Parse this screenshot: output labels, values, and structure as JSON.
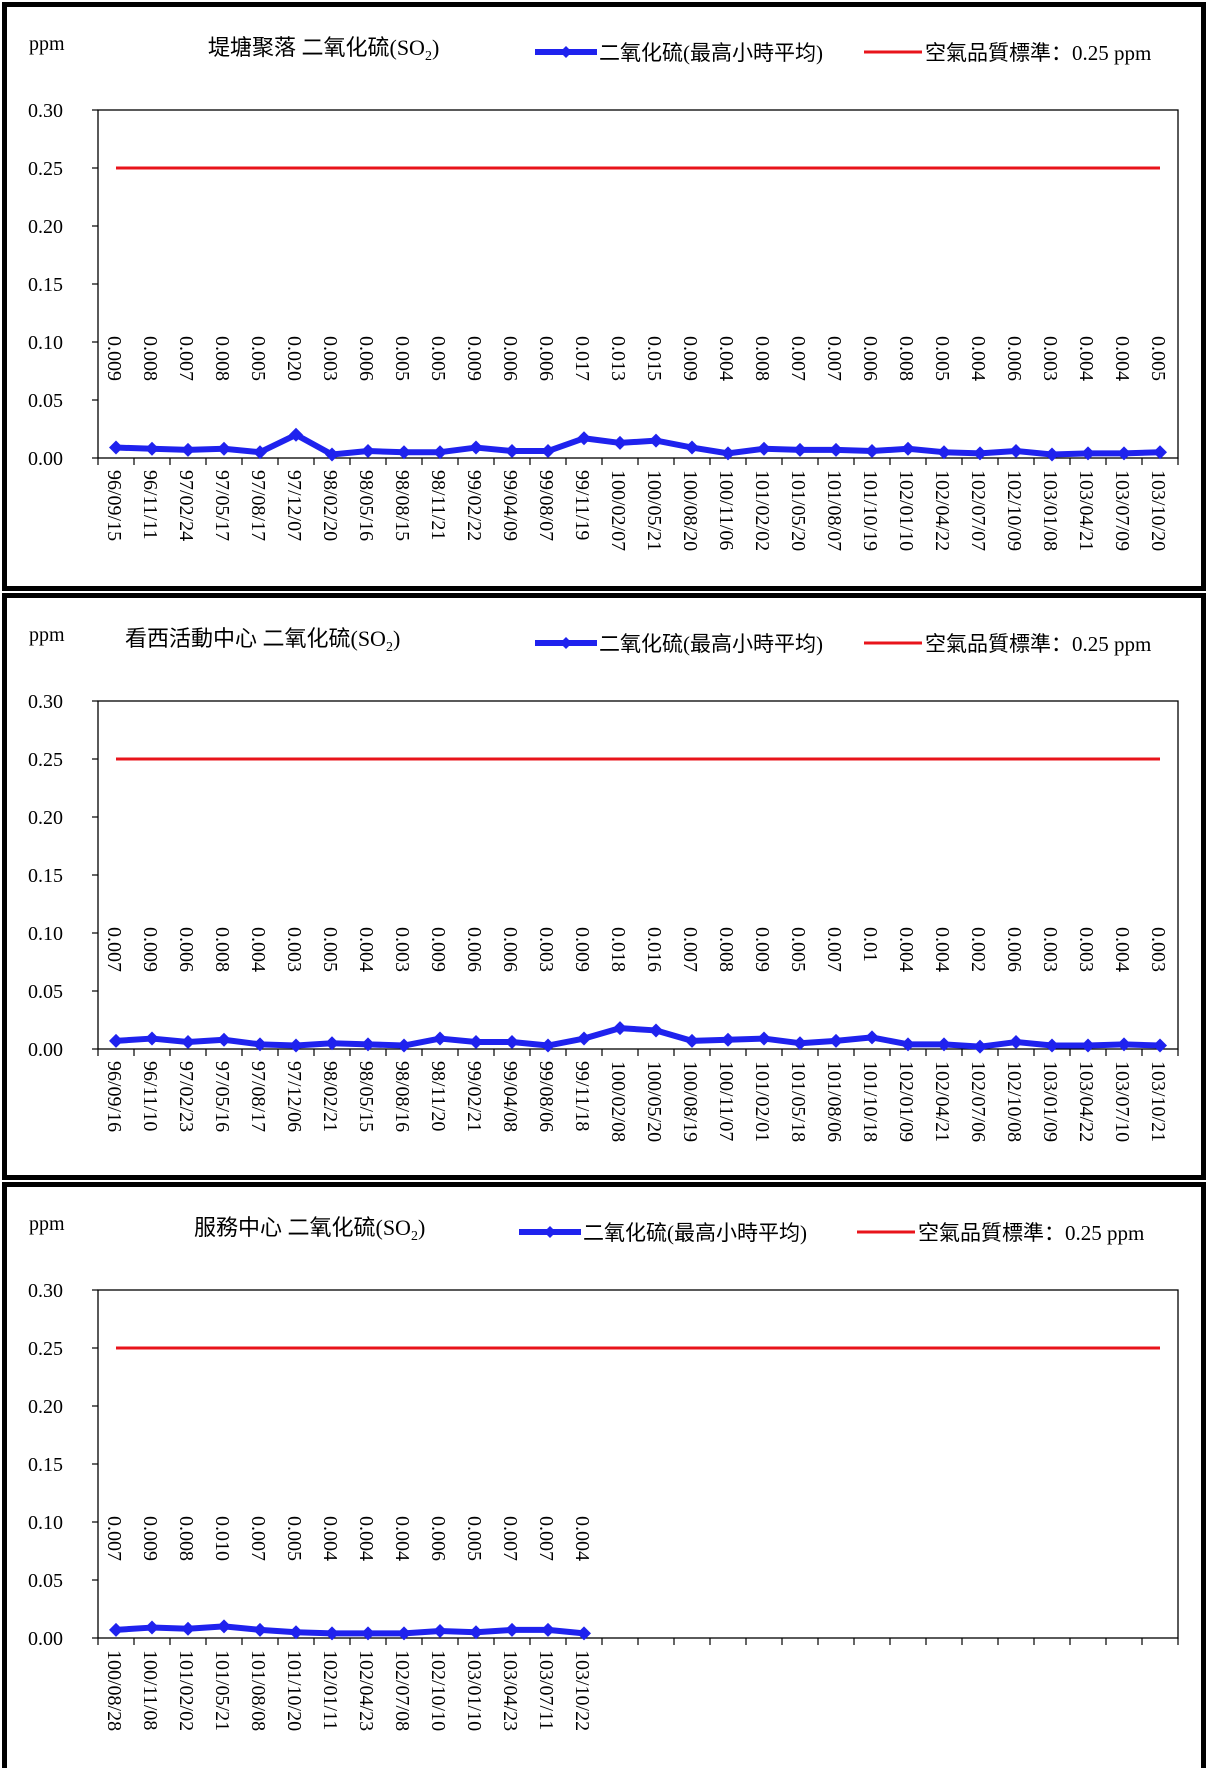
{
  "colors": {
    "series": "#1f22ee",
    "standard": "#e8141b",
    "axis": "#000000"
  },
  "charts": [
    {
      "unit": "ppm",
      "title_main": "堤塘聚落 二氧化硫(SO",
      "title_sub": "2",
      "title_end": ")",
      "legend_series": "二氧化硫(最高小時平均)",
      "legend_standard": "空氣品質標準：0.25 ppm"
    },
    {
      "unit": "ppm",
      "title_main": "看西活動中心 二氧化硫(SO",
      "title_sub": "2",
      "title_end": ")",
      "legend_series": "二氧化硫(最高小時平均)",
      "legend_standard": "空氣品質標準：0.25 ppm"
    },
    {
      "unit": "ppm",
      "title_main": "服務中心  二氧化硫(SO",
      "title_sub": "2",
      "title_end": ")",
      "legend_series": "二氧化硫(最高小時平均)",
      "legend_standard": "空氣品質標準：0.25 ppm"
    }
  ],
  "chart_data": [
    {
      "type": "line",
      "title": "堤塘聚落 二氧化硫(SO2)",
      "ylabel": "ppm",
      "ylim": [
        0,
        0.3
      ],
      "yticks": [
        "0.00",
        "0.05",
        "0.10",
        "0.15",
        "0.20",
        "0.25",
        "0.30"
      ],
      "slots": 30,
      "x": [
        "96/09/15",
        "96/11/11",
        "97/02/24",
        "97/05/17",
        "97/08/17",
        "97/12/07",
        "98/02/20",
        "98/05/16",
        "98/08/15",
        "98/11/21",
        "99/02/22",
        "99/04/09",
        "99/08/07",
        "99/11/19",
        "100/02/07",
        "100/05/21",
        "100/08/20",
        "100/11/06",
        "101/02/02",
        "101/05/20",
        "101/08/07",
        "101/10/19",
        "102/01/10",
        "102/04/22",
        "102/07/07",
        "102/10/09",
        "103/01/08",
        "103/04/21",
        "103/07/09",
        "103/10/20"
      ],
      "series": [
        {
          "name": "二氧化硫(最高小時平均)",
          "values": [
            0.009,
            0.008,
            0.007,
            0.008,
            0.005,
            0.02,
            0.003,
            0.006,
            0.005,
            0.005,
            0.009,
            0.006,
            0.006,
            0.017,
            0.013,
            0.015,
            0.009,
            0.004,
            0.008,
            0.007,
            0.007,
            0.006,
            0.008,
            0.005,
            0.004,
            0.006,
            0.003,
            0.004,
            0.004,
            0.005
          ],
          "labels": [
            "0.009",
            "0.008",
            "0.007",
            "0.008",
            "0.005",
            "0.020",
            "0.003",
            "0.006",
            "0.005",
            "0.005",
            "0.009",
            "0.006",
            "0.006",
            "0.017",
            "0.013",
            "0.015",
            "0.009",
            "0.004",
            "0.008",
            "0.007",
            "0.007",
            "0.006",
            "0.008",
            "0.005",
            "0.004",
            "0.006",
            "0.003",
            "0.004",
            "0.004",
            "0.005"
          ]
        },
        {
          "name": "空氣品質標準：0.25 ppm",
          "value": 0.25
        }
      ],
      "grid": false,
      "legend": "top-right"
    },
    {
      "type": "line",
      "title": "看西活動中心 二氧化硫(SO2)",
      "ylabel": "ppm",
      "ylim": [
        0,
        0.3
      ],
      "yticks": [
        "0.00",
        "0.05",
        "0.10",
        "0.15",
        "0.20",
        "0.25",
        "0.30"
      ],
      "slots": 30,
      "x": [
        "96/09/16",
        "96/11/10",
        "97/02/23",
        "97/05/16",
        "97/08/17",
        "97/12/06",
        "98/02/21",
        "98/05/15",
        "98/08/16",
        "98/11/20",
        "99/02/21",
        "99/04/08",
        "99/08/06",
        "99/11/18",
        "100/02/08",
        "100/05/20",
        "100/08/19",
        "100/11/07",
        "101/02/01",
        "101/05/18",
        "101/08/06",
        "101/10/18",
        "102/01/09",
        "102/04/21",
        "102/07/06",
        "102/10/08",
        "103/01/09",
        "103/04/22",
        "103/07/10",
        "103/10/21"
      ],
      "series": [
        {
          "name": "二氧化硫(最高小時平均)",
          "values": [
            0.007,
            0.009,
            0.006,
            0.008,
            0.004,
            0.003,
            0.005,
            0.004,
            0.003,
            0.009,
            0.006,
            0.006,
            0.003,
            0.009,
            0.018,
            0.016,
            0.007,
            0.008,
            0.009,
            0.005,
            0.007,
            0.01,
            0.004,
            0.004,
            0.002,
            0.006,
            0.003,
            0.003,
            0.004,
            0.003
          ],
          "labels": [
            "0.007",
            "0.009",
            "0.006",
            "0.008",
            "0.004",
            "0.003",
            "0.005",
            "0.004",
            "0.003",
            "0.009",
            "0.006",
            "0.006",
            "0.003",
            "0.009",
            "0.018",
            "0.016",
            "0.007",
            "0.008",
            "0.009",
            "0.005",
            "0.007",
            "0.01",
            "0.004",
            "0.004",
            "0.002",
            "0.006",
            "0.003",
            "0.003",
            "0.004",
            "0.003"
          ]
        },
        {
          "name": "空氣品質標準：0.25 ppm",
          "value": 0.25
        }
      ],
      "grid": false,
      "legend": "top-right"
    },
    {
      "type": "line",
      "title": "服務中心  二氧化硫(SO2)",
      "ylabel": "ppm",
      "ylim": [
        0,
        0.3
      ],
      "yticks": [
        "0.00",
        "0.05",
        "0.10",
        "0.15",
        "0.20",
        "0.25",
        "0.30"
      ],
      "slots": 30,
      "x": [
        "100/08/28",
        "100/11/08",
        "101/02/02",
        "101/05/21",
        "101/08/08",
        "101/10/20",
        "102/01/11",
        "102/04/23",
        "102/07/08",
        "102/10/10",
        "103/01/10",
        "103/04/23",
        "103/07/11",
        "103/10/22"
      ],
      "series": [
        {
          "name": "二氧化硫(最高小時平均)",
          "values": [
            0.007,
            0.009,
            0.008,
            0.01,
            0.007,
            0.005,
            0.004,
            0.004,
            0.004,
            0.006,
            0.005,
            0.007,
            0.007,
            0.004
          ],
          "labels": [
            "0.007",
            "0.009",
            "0.008",
            "0.010",
            "0.007",
            "0.005",
            "0.004",
            "0.004",
            "0.004",
            "0.006",
            "0.005",
            "0.007",
            "0.007",
            "0.004"
          ]
        },
        {
          "name": "空氣品質標準：0.25 ppm",
          "value": 0.25
        }
      ],
      "grid": false,
      "legend": "top-right"
    }
  ]
}
